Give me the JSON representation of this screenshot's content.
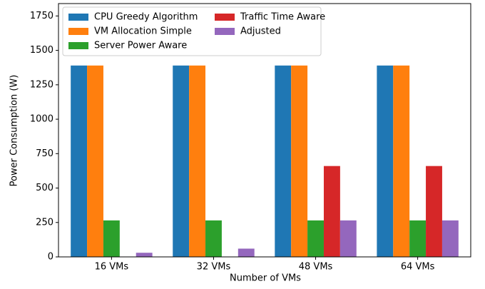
{
  "chart_data": {
    "type": "bar",
    "categories": [
      "16 VMs",
      "32 VMs",
      "48 VMs",
      "64 VMs"
    ],
    "series": [
      {
        "name": "CPU Greedy Algorithm",
        "color": "#1f77b4",
        "values": [
          1390,
          1390,
          1390,
          1390
        ]
      },
      {
        "name": "VM Allocation Simple",
        "color": "#ff7f0e",
        "values": [
          1390,
          1390,
          1390,
          1390
        ]
      },
      {
        "name": "Server Power Aware",
        "color": "#2ca02c",
        "values": [
          265,
          265,
          265,
          265
        ]
      },
      {
        "name": "Traffic Time Aware",
        "color": "#d62728",
        "values": [
          0,
          0,
          660,
          660
        ]
      },
      {
        "name": "Adjusted",
        "color": "#9467bd",
        "values": [
          30,
          60,
          265,
          265
        ]
      }
    ],
    "xlabel": "Number of VMs",
    "ylabel": "Power Consumption (W)",
    "ylim": [
      0,
      1840
    ],
    "yticks": [
      0,
      250,
      500,
      750,
      1000,
      1250,
      1500,
      1750
    ],
    "legend": "upper left",
    "legend_columns": 2
  }
}
